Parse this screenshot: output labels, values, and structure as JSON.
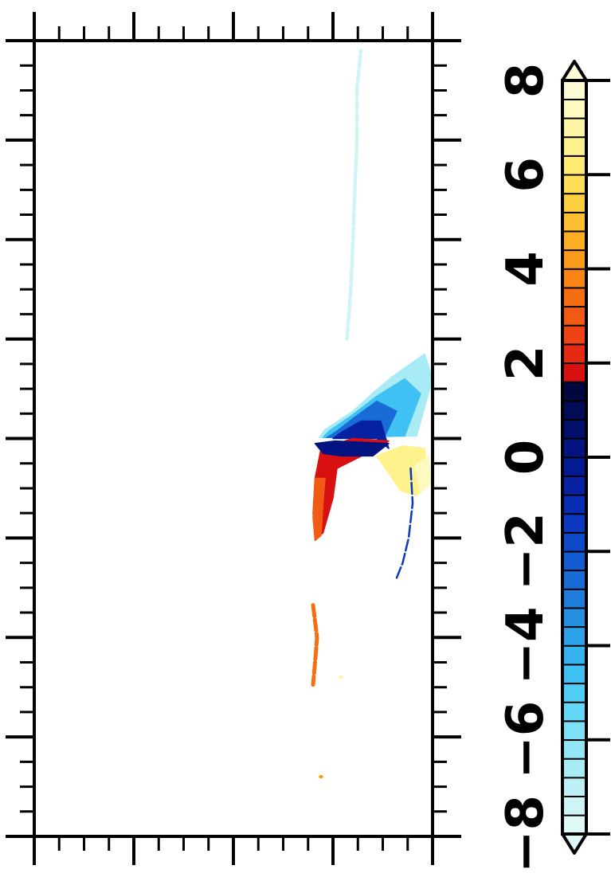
{
  "chart_data": {
    "type": "heatmap",
    "title": "",
    "xlabel": "",
    "ylabel": "",
    "orientation": "rotated-90",
    "grid": false,
    "colorbar": {
      "placement": "right",
      "range": [
        -8,
        8
      ],
      "ticks": [
        {
          "value": -8,
          "label": "−8"
        },
        {
          "value": -6,
          "label": "−6"
        },
        {
          "value": -4,
          "label": "−4"
        },
        {
          "value": -2,
          "label": "−2"
        },
        {
          "value": 0,
          "label": "0"
        },
        {
          "value": 2,
          "label": "2"
        },
        {
          "value": 4,
          "label": "4"
        },
        {
          "value": 6,
          "label": "6"
        },
        {
          "value": 8,
          "label": "8"
        }
      ],
      "extend": "both",
      "colors": [
        "#dff8f8",
        "#cef4f6",
        "#bdf0f5",
        "#a8ebf5",
        "#92e6f6",
        "#7de0f7",
        "#66d8f7",
        "#50cef5",
        "#3fc2f3",
        "#35b3ee",
        "#2da2e8",
        "#2690e2",
        "#1f7edc",
        "#196cd6",
        "#145ad0",
        "#0f48c8",
        "#0b38bf",
        "#082cb2",
        "#0622a2",
        "#041a92",
        "#03137f",
        "#030f6a",
        "#020b55",
        "#010840",
        "#d81010",
        "#e42a10",
        "#ec4412",
        "#f05a12",
        "#f56e12",
        "#f88414",
        "#fa9a1a",
        "#fcae24",
        "#fdc030",
        "#fed040",
        "#fede56",
        "#feea70",
        "#fef28c",
        "#fef6a6",
        "#fef9c0",
        "#fefcd6"
      ]
    },
    "axes": {
      "major_ticks": 5,
      "minor_per_major": 3
    },
    "blobs": [
      {
        "shape": "fan",
        "value": -6.4,
        "pts": [
          [
            9.6,
            0.05
          ],
          [
            10.0,
            1.2
          ],
          [
            9.8,
            1.7
          ],
          [
            9.0,
            1.25
          ],
          [
            8.55,
            0.95
          ],
          [
            8.0,
            0.55
          ],
          [
            7.3,
            0.18
          ],
          [
            7.15,
            0.02
          ]
        ]
      },
      {
        "shape": "fan",
        "value": -4.6,
        "pts": [
          [
            9.3,
            0.05
          ],
          [
            9.7,
            0.9
          ],
          [
            9.3,
            1.2
          ],
          [
            8.6,
            0.85
          ],
          [
            8.0,
            0.48
          ],
          [
            7.4,
            0.15
          ],
          [
            7.25,
            0.02
          ]
        ]
      },
      {
        "shape": "fan",
        "value": -2.6,
        "pts": [
          [
            8.8,
            0.05
          ],
          [
            9.1,
            0.55
          ],
          [
            8.6,
            0.75
          ],
          [
            8.0,
            0.4
          ],
          [
            7.6,
            0.15
          ],
          [
            7.35,
            0.02
          ]
        ]
      },
      {
        "shape": "fan",
        "value": -0.6,
        "pts": [
          [
            8.6,
            0.0
          ],
          [
            8.9,
            -0.2
          ],
          [
            8.7,
            0.35
          ],
          [
            8.2,
            0.35
          ],
          [
            7.7,
            0.12
          ],
          [
            7.5,
            0.0
          ]
        ]
      },
      {
        "shape": "fan",
        "value": 1.8,
        "pts": [
          [
            8.0,
            0.0
          ],
          [
            7.2,
            -0.2
          ],
          [
            7.05,
            -0.8
          ],
          [
            7.0,
            -1.5
          ],
          [
            7.05,
            -2.0
          ],
          [
            7.25,
            -1.9
          ],
          [
            7.5,
            -1.2
          ],
          [
            7.6,
            -0.6
          ],
          [
            8.1,
            -0.4
          ],
          [
            8.6,
            -0.2
          ],
          [
            8.9,
            -0.05
          ]
        ]
      },
      {
        "shape": "fan",
        "value": 0.2,
        "pts": [
          [
            7.55,
            -0.05
          ],
          [
            8.9,
            -0.1
          ],
          [
            8.5,
            -0.35
          ],
          [
            7.7,
            -0.35
          ],
          [
            7.25,
            -0.3
          ],
          [
            7.05,
            -0.1
          ]
        ]
      },
      {
        "shape": "fan",
        "value": 3.0,
        "pts": [
          [
            7.05,
            -0.8
          ],
          [
            7.0,
            -1.6
          ],
          [
            7.05,
            -2.05
          ],
          [
            7.2,
            -1.95
          ],
          [
            7.25,
            -1.3
          ],
          [
            7.3,
            -0.8
          ]
        ]
      },
      {
        "shape": "fan",
        "value": 6.6,
        "pts": [
          [
            9.25,
            -0.15
          ],
          [
            9.8,
            -0.2
          ],
          [
            9.9,
            -0.85
          ],
          [
            9.6,
            -1.15
          ],
          [
            9.2,
            -1.05
          ],
          [
            8.9,
            -0.7
          ],
          [
            8.6,
            -0.35
          ]
        ]
      },
      {
        "shape": "fan",
        "value": 7.4,
        "pts": [
          [
            9.55,
            -0.55
          ],
          [
            9.9,
            -0.35
          ],
          [
            9.95,
            -0.9
          ],
          [
            9.7,
            -1.1
          ]
        ]
      },
      {
        "shape": "streak",
        "value": -7.6,
        "pts": [
          [
            7.85,
            2.0
          ],
          [
            7.95,
            3.0
          ],
          [
            8.0,
            4.0
          ],
          [
            8.05,
            5.0
          ],
          [
            8.1,
            6.0
          ],
          [
            8.1,
            7.0
          ],
          [
            8.2,
            7.8
          ]
        ],
        "w": 0.09
      },
      {
        "shape": "streak",
        "value": 3.4,
        "pts": [
          [
            7.0,
            -3.35
          ],
          [
            7.1,
            -4.0
          ],
          [
            7.05,
            -4.5
          ],
          [
            7.0,
            -4.95
          ]
        ],
        "w": 0.1
      },
      {
        "shape": "streak",
        "value": -1.6,
        "pts": [
          [
            9.45,
            -0.6
          ],
          [
            9.5,
            -1.3
          ],
          [
            9.4,
            -2.0
          ],
          [
            9.25,
            -2.5
          ],
          [
            9.1,
            -2.8
          ]
        ],
        "w": 0.05
      },
      {
        "shape": "dot",
        "value": 6.8,
        "pts": [
          [
            7.7,
            -4.8
          ]
        ],
        "w": 0.1
      },
      {
        "shape": "dot",
        "value": 4.2,
        "pts": [
          [
            7.2,
            -6.8
          ]
        ],
        "w": 0.09
      }
    ]
  }
}
